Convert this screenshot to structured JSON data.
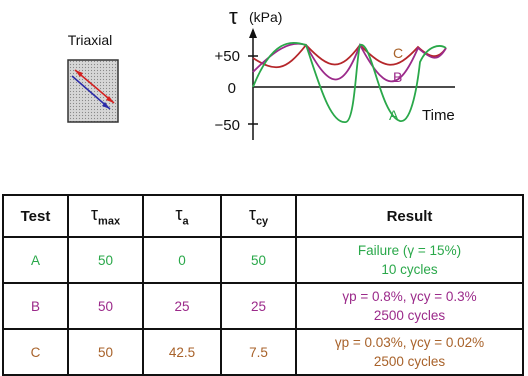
{
  "triaxial_label": "Triaxial",
  "plot": {
    "ylabel_symbol": "τ",
    "ylabel_unit": "(kPa)",
    "xlabel": "Time",
    "ticks": [
      "+50",
      "0",
      "−50"
    ],
    "curve_labels": [
      "A",
      "B",
      "C"
    ]
  },
  "table": {
    "headers": {
      "test": "Test",
      "tmax_sym": "τ",
      "tmax_sub": "max",
      "ta_sym": "τ",
      "ta_sub": "a",
      "tcy_sym": "τ",
      "tcy_sub": "cy",
      "result": "Result"
    },
    "rows": [
      {
        "test": "A",
        "tmax": "50",
        "ta": "0",
        "tcy": "50",
        "result_line1": "Failure (γ = 15%)",
        "result_line2": "10 cycles"
      },
      {
        "test": "B",
        "tmax": "50",
        "ta": "25",
        "tcy": "25",
        "result_line1": "γp = 0.8%, γcy = 0.3%",
        "result_line2": "2500 cycles"
      },
      {
        "test": "C",
        "tmax": "50",
        "ta": "42.5",
        "tcy": "7.5",
        "result_line1": "γp = 0.03%, γcy = 0.02%",
        "result_line2": "2500 cycles"
      }
    ]
  },
  "colors": {
    "A": "#2aa84a",
    "B": "#9b2a8a",
    "C": "#b5262a",
    "C_text": "#a8622a"
  }
}
